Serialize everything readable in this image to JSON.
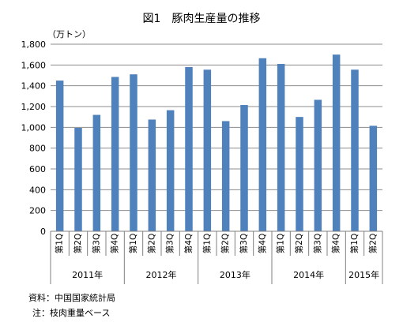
{
  "chart_data": {
    "type": "bar",
    "title": "図1　豚肉生産量の推移",
    "unit_label": "（万トン）",
    "categories": [
      "第1Q",
      "第2Q",
      "第3Q",
      "第4Q",
      "第1Q",
      "第2Q",
      "第3Q",
      "第4Q",
      "第1Q",
      "第2Q",
      "第3Q",
      "第4Q",
      "第1Q",
      "第2Q",
      "第3Q",
      "第4Q",
      "第1Q",
      "第2Q"
    ],
    "groups": [
      {
        "label": "2011年",
        "count": 4
      },
      {
        "label": "2012年",
        "count": 4
      },
      {
        "label": "2013年",
        "count": 4
      },
      {
        "label": "2014年",
        "count": 4
      },
      {
        "label": "2015年",
        "count": 2
      }
    ],
    "series": [
      {
        "values": [
          1450,
          995,
          1120,
          1485,
          1510,
          1075,
          1165,
          1580,
          1555,
          1060,
          1215,
          1665,
          1610,
          1100,
          1265,
          1700,
          1555,
          1015
        ]
      }
    ],
    "ylim": [
      0,
      1800
    ],
    "yticks": [
      0,
      200,
      400,
      600,
      800,
      1000,
      1200,
      1400,
      1600,
      1800
    ],
    "ytick_labels": [
      "0",
      "200",
      "400",
      "600",
      "800",
      "1,000",
      "1,200",
      "1,400",
      "1,600",
      "1,800"
    ],
    "grid": true,
    "legend": "none",
    "bar_color": "#4F81BD"
  },
  "footnotes": {
    "source": "資料：中国国家統計局",
    "note": "注：枝肉重量ベース"
  }
}
